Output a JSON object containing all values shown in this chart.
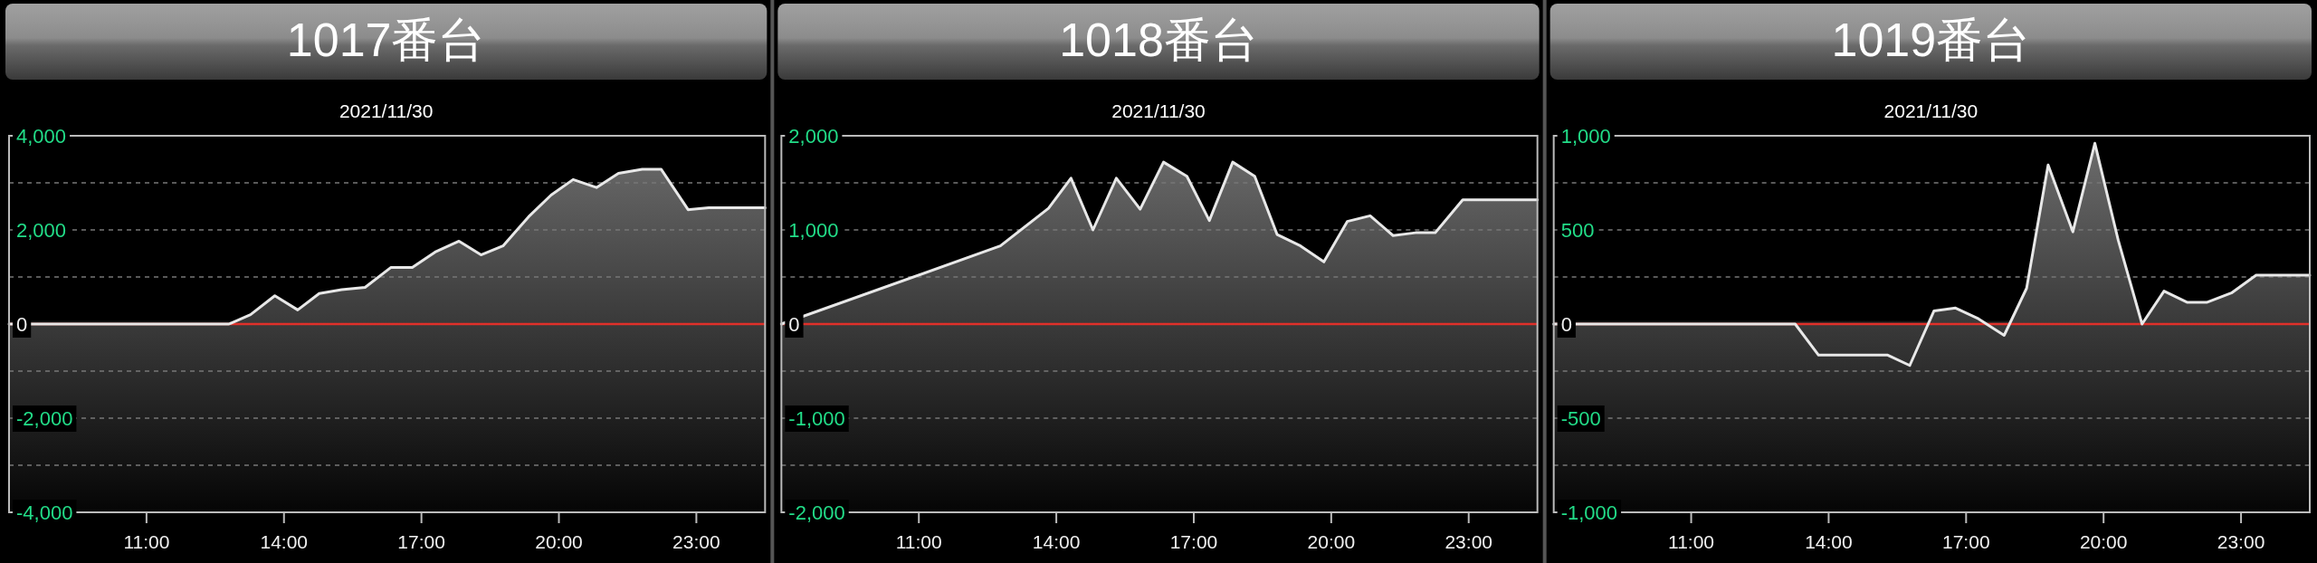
{
  "chart_data": [
    {
      "type": "area",
      "title": "1017番台",
      "subtitle": "2021/11/30",
      "color": "#e8e8e8",
      "x": [
        8,
        12.8,
        13.27,
        13.8,
        14.3,
        14.77,
        15.26,
        15.77,
        16.33,
        16.8,
        17.3,
        17.82,
        18.3,
        18.78,
        19.34,
        19.83,
        20.31,
        20.82,
        21.3,
        21.82,
        22.23,
        22.82,
        23.27,
        24.5
      ],
      "values": [
        0,
        0,
        200,
        600,
        300,
        650,
        730,
        780,
        1200,
        1200,
        1530,
        1760,
        1470,
        1660,
        2280,
        2740,
        3070,
        2900,
        3200,
        3290,
        3290,
        2430,
        2470,
        2470
      ],
      "xlim": [
        8,
        24.5
      ],
      "ylim": [
        -4000,
        4000
      ],
      "xticks": [
        {
          "value": 11,
          "label": "11:00"
        },
        {
          "value": 14,
          "label": "14:00"
        },
        {
          "value": 17,
          "label": "17:00"
        },
        {
          "value": 20,
          "label": "20:00"
        },
        {
          "value": 23,
          "label": "23:00"
        }
      ],
      "yticks": [
        {
          "value": -4000,
          "label": "-4,000"
        },
        {
          "value": -3000,
          "label": null
        },
        {
          "value": -2000,
          "label": "-2,000"
        },
        {
          "value": -1000,
          "label": null
        },
        {
          "value": 0,
          "label": "0"
        },
        {
          "value": 1000,
          "label": null
        },
        {
          "value": 2000,
          "label": "2,000"
        },
        {
          "value": 3000,
          "label": null
        },
        {
          "value": 4000,
          "label": "4,000"
        }
      ],
      "grid": "y",
      "ref_lines": [
        {
          "axis": "y",
          "value": 0,
          "color": "#e0302a"
        }
      ]
    },
    {
      "type": "area",
      "title": "1018番台",
      "subtitle": "2021/11/30",
      "color": "#e8e8e8",
      "x": [
        8,
        12.78,
        13.83,
        14.32,
        14.8,
        15.31,
        15.83,
        16.34,
        16.85,
        17.34,
        17.85,
        18.33,
        18.82,
        19.33,
        19.84,
        20.35,
        20.85,
        21.35,
        21.84,
        22.27,
        22.87,
        24.5
      ],
      "values": [
        0,
        830,
        1230,
        1550,
        1000,
        1550,
        1220,
        1720,
        1570,
        1100,
        1720,
        1570,
        950,
        830,
        660,
        1090,
        1150,
        940,
        970,
        970,
        1320,
        1320
      ],
      "xlim": [
        8,
        24.5
      ],
      "ylim": [
        -2000,
        2000
      ],
      "xticks": [
        {
          "value": 11,
          "label": "11:00"
        },
        {
          "value": 14,
          "label": "14:00"
        },
        {
          "value": 17,
          "label": "17:00"
        },
        {
          "value": 20,
          "label": "20:00"
        },
        {
          "value": 23,
          "label": "23:00"
        }
      ],
      "yticks": [
        {
          "value": -2000,
          "label": "-2,000"
        },
        {
          "value": -1500,
          "label": null
        },
        {
          "value": -1000,
          "label": "-1,000"
        },
        {
          "value": -500,
          "label": null
        },
        {
          "value": 0,
          "label": "0"
        },
        {
          "value": 500,
          "label": null
        },
        {
          "value": 1000,
          "label": "1,000"
        },
        {
          "value": 1500,
          "label": null
        },
        {
          "value": 2000,
          "label": "2,000"
        }
      ],
      "grid": "y",
      "ref_lines": [
        {
          "axis": "y",
          "value": 0,
          "color": "#e0302a"
        }
      ]
    },
    {
      "type": "area",
      "title": "1019番台",
      "subtitle": "2021/11/30",
      "color": "#e8e8e8",
      "x": [
        8,
        13.27,
        13.78,
        15.29,
        15.77,
        16.3,
        16.77,
        17.27,
        17.83,
        18.32,
        18.79,
        19.33,
        19.81,
        20.32,
        20.84,
        21.32,
        21.83,
        22.25,
        22.79,
        23.33,
        24.5
      ],
      "values": [
        0,
        0,
        -165,
        -165,
        -220,
        70,
        85,
        28,
        -60,
        190,
        845,
        490,
        960,
        445,
        0,
        175,
        115,
        115,
        165,
        260,
        260
      ],
      "xlim": [
        8,
        24.5
      ],
      "ylim": [
        -1000,
        1000
      ],
      "xticks": [
        {
          "value": 11,
          "label": "11:00"
        },
        {
          "value": 14,
          "label": "14:00"
        },
        {
          "value": 17,
          "label": "17:00"
        },
        {
          "value": 20,
          "label": "20:00"
        },
        {
          "value": 23,
          "label": "23:00"
        }
      ],
      "yticks": [
        {
          "value": -1000,
          "label": "-1,000"
        },
        {
          "value": -750,
          "label": null
        },
        {
          "value": -500,
          "label": "-500"
        },
        {
          "value": -250,
          "label": null
        },
        {
          "value": 0,
          "label": "0"
        },
        {
          "value": 250,
          "label": null
        },
        {
          "value": 500,
          "label": "500"
        },
        {
          "value": 750,
          "label": null
        },
        {
          "value": 1000,
          "label": "1,000"
        }
      ],
      "grid": "y",
      "ref_lines": [
        {
          "axis": "y",
          "value": 0,
          "color": "#e0302a"
        }
      ]
    }
  ]
}
